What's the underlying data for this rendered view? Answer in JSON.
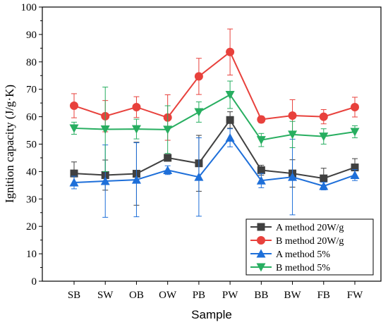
{
  "chart_data": {
    "type": "line",
    "title": "",
    "xlabel": "Sample",
    "ylabel": "Ignition capacity (J/g·K)",
    "ylim": [
      0,
      100
    ],
    "yticks": [
      0,
      10,
      20,
      30,
      40,
      50,
      60,
      70,
      80,
      90,
      100
    ],
    "categories": [
      "SB",
      "SW",
      "OB",
      "OW",
      "PB",
      "PW",
      "BB",
      "BW",
      "FB",
      "FW"
    ],
    "legend_position": "bottom-right",
    "grid": false,
    "series": [
      {
        "name": "A method 20W/g",
        "color": "#404040",
        "marker": "square",
        "values": [
          39.3,
          38.7,
          39.2,
          45.0,
          43.0,
          58.8,
          40.5,
          39.3,
          37.5,
          41.5
        ],
        "errors": [
          4.2,
          5.5,
          11.5,
          0.9,
          10.2,
          3.0,
          1.8,
          5.0,
          3.7,
          3.2
        ]
      },
      {
        "name": "B method 20W/g",
        "color": "#e8413c",
        "marker": "circle",
        "values": [
          64.0,
          60.2,
          63.5,
          59.7,
          74.7,
          83.6,
          59.0,
          60.4,
          60.0,
          63.5
        ],
        "errors": [
          4.4,
          5.7,
          3.8,
          8.3,
          6.6,
          8.4,
          1.2,
          5.8,
          2.6,
          3.6
        ]
      },
      {
        "name": "A method 5%",
        "color": "#1e6fd9",
        "marker": "triangle-up",
        "values": [
          36.0,
          36.5,
          37.0,
          40.5,
          38.0,
          52.3,
          36.7,
          38.0,
          34.7,
          38.7
        ],
        "errors": [
          2.3,
          13.2,
          13.5,
          1.6,
          14.3,
          3.3,
          2.6,
          13.8,
          1.4,
          2.0
        ]
      },
      {
        "name": "B method 5%",
        "color": "#27ae60",
        "marker": "triangle-down",
        "values": [
          55.8,
          55.4,
          55.5,
          55.3,
          61.7,
          68.0,
          51.5,
          53.5,
          52.8,
          54.5
        ],
        "errors": [
          2.2,
          15.4,
          3.6,
          8.7,
          3.7,
          5.0,
          2.4,
          4.8,
          2.8,
          2.2
        ]
      }
    ]
  }
}
